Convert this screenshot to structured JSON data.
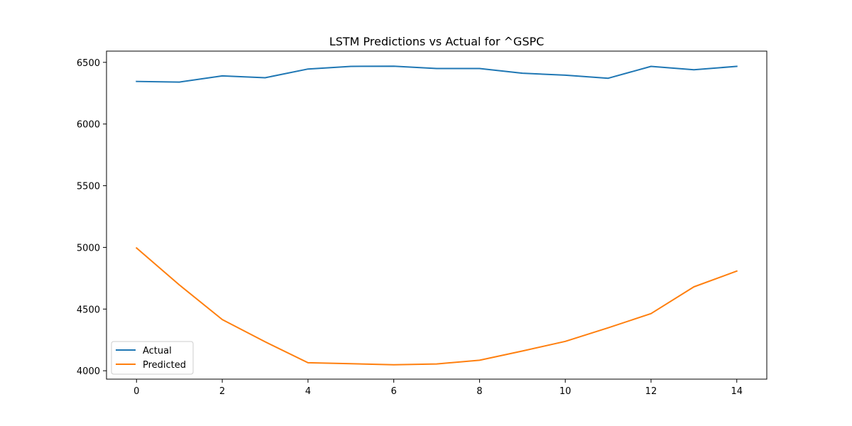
{
  "chart_data": {
    "type": "line",
    "title": "LSTM Predictions vs Actual for ^GSPC",
    "xlabel": "",
    "ylabel": "",
    "x": [
      0,
      1,
      2,
      3,
      4,
      5,
      6,
      7,
      8,
      9,
      10,
      11,
      12,
      13,
      14
    ],
    "xlim": [
      -0.7,
      14.7
    ],
    "ylim": [
      3932,
      6591
    ],
    "xticks": [
      0,
      2,
      4,
      6,
      8,
      10,
      12,
      14
    ],
    "yticks": [
      4000,
      4500,
      5000,
      5500,
      6000,
      6500
    ],
    "grid": false,
    "legend_position": "lower-left",
    "series": [
      {
        "name": "Actual",
        "color": "#1f77b4",
        "values": [
          6345,
          6340,
          6390,
          6375,
          6446,
          6467,
          6469,
          6450,
          6450,
          6412,
          6396,
          6371,
          6467,
          6440,
          6467
        ]
      },
      {
        "name": "Predicted",
        "color": "#ff7f0e",
        "values": [
          4995,
          4695,
          4415,
          4235,
          4065,
          4057,
          4048,
          4055,
          4085,
          4160,
          4238,
          4348,
          4463,
          4680,
          4808
        ]
      }
    ]
  }
}
